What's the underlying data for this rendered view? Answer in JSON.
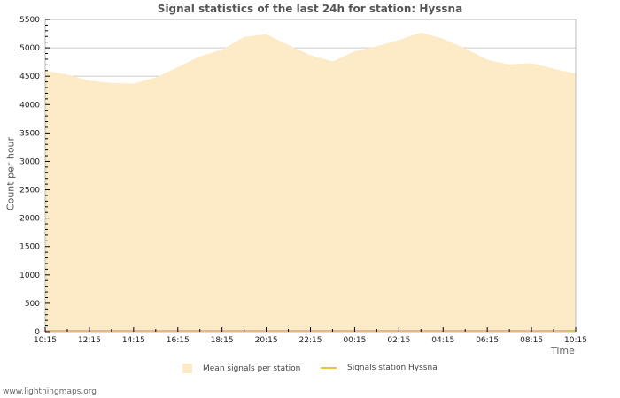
{
  "header": {
    "title": "Signal statistics of the last 24h for station: Hyssna"
  },
  "axes": {
    "ylabel": "Count per hour",
    "xlabel": "Time",
    "yticks": [
      "0",
      "500",
      "1000",
      "1500",
      "2000",
      "2500",
      "3000",
      "3500",
      "4000",
      "4500",
      "5000",
      "5500"
    ],
    "xticks": [
      "10:15",
      "12:15",
      "14:15",
      "16:15",
      "18:15",
      "20:15",
      "22:15",
      "00:15",
      "02:15",
      "04:15",
      "06:15",
      "08:15",
      "10:15"
    ]
  },
  "legend": {
    "items": [
      {
        "label": "Mean signals per station",
        "color": "#fdebc8",
        "kind": "area"
      },
      {
        "label": "Signals station Hyssna",
        "color": "#f0c040",
        "kind": "line"
      }
    ]
  },
  "footer": {
    "text": "www.lightningmaps.org"
  },
  "colors": {
    "area": "#fdebc8",
    "line": "#f0c040",
    "grid": "#cccccc",
    "axis": "#bbbbbb"
  },
  "chart_data": {
    "type": "area",
    "title": "Signal statistics of the last 24h for station: Hyssna",
    "xlabel": "Time",
    "ylabel": "Count per hour",
    "ylim": [
      0,
      5500
    ],
    "grid": true,
    "legend_position": "bottom",
    "x": [
      "10:15",
      "11:15",
      "12:15",
      "13:15",
      "14:15",
      "15:15",
      "16:15",
      "17:15",
      "18:15",
      "19:15",
      "20:15",
      "21:15",
      "22:15",
      "23:15",
      "00:15",
      "01:15",
      "02:15",
      "03:15",
      "04:15",
      "05:15",
      "06:15",
      "07:15",
      "08:15",
      "09:15",
      "10:15"
    ],
    "series": [
      {
        "name": "Mean signals per station",
        "values": [
          4600,
          4530,
          4420,
          4380,
          4370,
          4480,
          4660,
          4850,
          4970,
          5190,
          5240,
          5050,
          4870,
          4760,
          4940,
          5030,
          5140,
          5270,
          5160,
          4990,
          4790,
          4710,
          4730,
          4630,
          4550
        ]
      },
      {
        "name": "Signals station Hyssna",
        "values": [
          0,
          0,
          0,
          0,
          0,
          0,
          0,
          0,
          0,
          0,
          0,
          0,
          0,
          0,
          0,
          0,
          0,
          0,
          0,
          0,
          0,
          0,
          0,
          0,
          0
        ]
      }
    ]
  }
}
